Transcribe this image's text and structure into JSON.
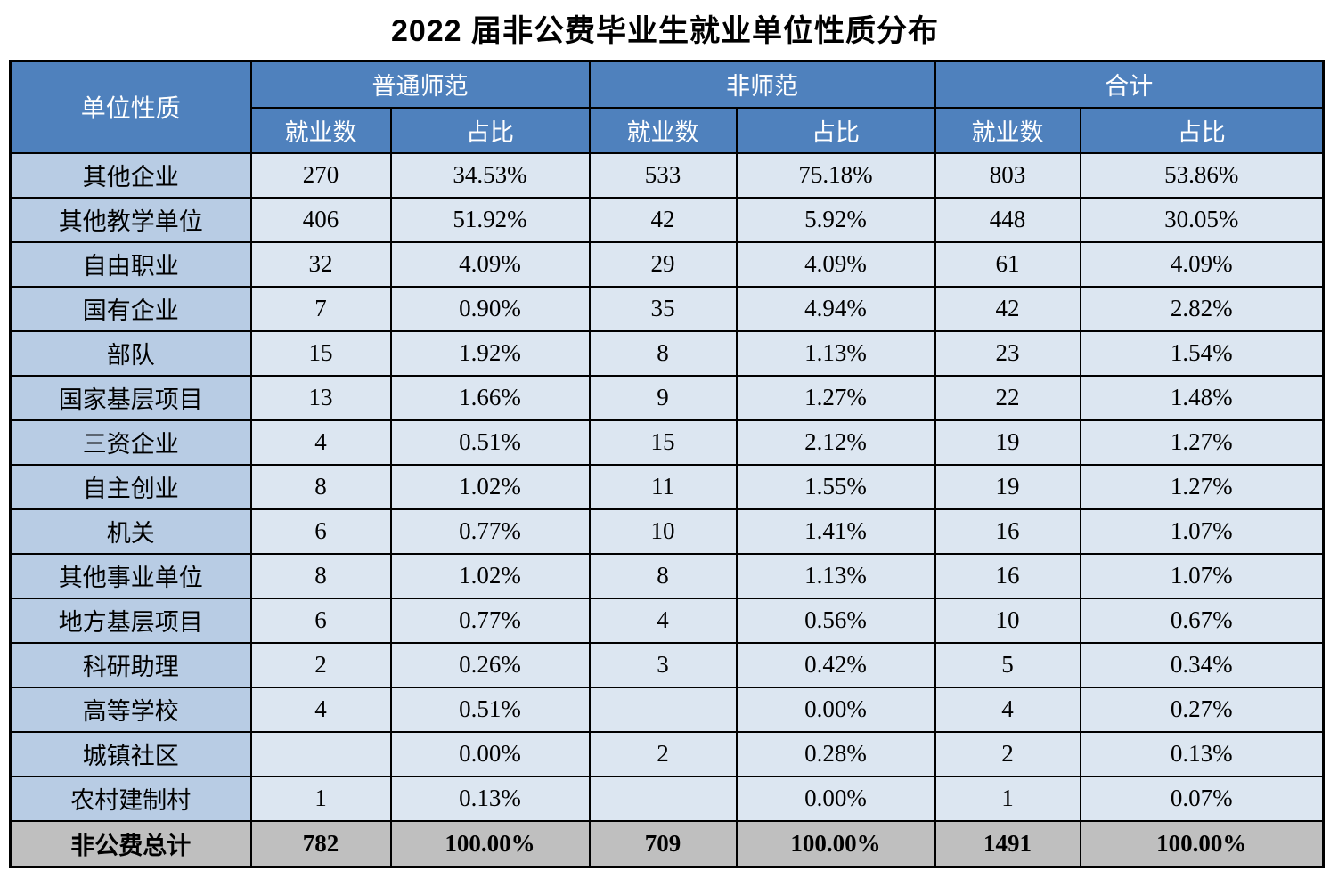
{
  "title": "2022 届非公费毕业生就业单位性质分布",
  "colors": {
    "header_bg": "#4F81BD",
    "header_text": "#FFFFFF",
    "row_label_bg": "#B8CCE4",
    "cell_bg": "#DCE6F1",
    "total_row_bg": "#BFBFBF",
    "border": "#000000",
    "title_text": "#000000"
  },
  "chart_data": {
    "type": "table",
    "title": "2022 届非公费毕业生就业单位性质分布",
    "corner_header": "单位性质",
    "groups": [
      "普通师范",
      "非师范",
      "合计"
    ],
    "sub_headers": [
      "就业数",
      "占比"
    ],
    "columns": [
      "单位性质",
      "普通师范-就业数",
      "普通师范-占比",
      "非师范-就业数",
      "非师范-占比",
      "合计-就业数",
      "合计-占比"
    ],
    "rows": [
      {
        "name": "其他企业",
        "values": [
          "270",
          "34.53%",
          "533",
          "75.18%",
          "803",
          "53.86%"
        ]
      },
      {
        "name": "其他教学单位",
        "values": [
          "406",
          "51.92%",
          "42",
          "5.92%",
          "448",
          "30.05%"
        ]
      },
      {
        "name": "自由职业",
        "values": [
          "32",
          "4.09%",
          "29",
          "4.09%",
          "61",
          "4.09%"
        ]
      },
      {
        "name": "国有企业",
        "values": [
          "7",
          "0.90%",
          "35",
          "4.94%",
          "42",
          "2.82%"
        ]
      },
      {
        "name": "部队",
        "values": [
          "15",
          "1.92%",
          "8",
          "1.13%",
          "23",
          "1.54%"
        ]
      },
      {
        "name": "国家基层项目",
        "values": [
          "13",
          "1.66%",
          "9",
          "1.27%",
          "22",
          "1.48%"
        ]
      },
      {
        "name": "三资企业",
        "values": [
          "4",
          "0.51%",
          "15",
          "2.12%",
          "19",
          "1.27%"
        ]
      },
      {
        "name": "自主创业",
        "values": [
          "8",
          "1.02%",
          "11",
          "1.55%",
          "19",
          "1.27%"
        ]
      },
      {
        "name": "机关",
        "values": [
          "6",
          "0.77%",
          "10",
          "1.41%",
          "16",
          "1.07%"
        ]
      },
      {
        "name": "其他事业单位",
        "values": [
          "8",
          "1.02%",
          "8",
          "1.13%",
          "16",
          "1.07%"
        ]
      },
      {
        "name": "地方基层项目",
        "values": [
          "6",
          "0.77%",
          "4",
          "0.56%",
          "10",
          "0.67%"
        ]
      },
      {
        "name": "科研助理",
        "values": [
          "2",
          "0.26%",
          "3",
          "0.42%",
          "5",
          "0.34%"
        ]
      },
      {
        "name": "高等学校",
        "values": [
          "4",
          "0.51%",
          "",
          "0.00%",
          "4",
          "0.27%"
        ]
      },
      {
        "name": "城镇社区",
        "values": [
          "",
          "0.00%",
          "2",
          "0.28%",
          "2",
          "0.13%"
        ]
      },
      {
        "name": "农村建制村",
        "values": [
          "1",
          "0.13%",
          "",
          "0.00%",
          "1",
          "0.07%"
        ]
      }
    ],
    "total": {
      "name": "非公费总计",
      "values": [
        "782",
        "100.00%",
        "709",
        "100.00%",
        "1491",
        "100.00%"
      ]
    }
  }
}
